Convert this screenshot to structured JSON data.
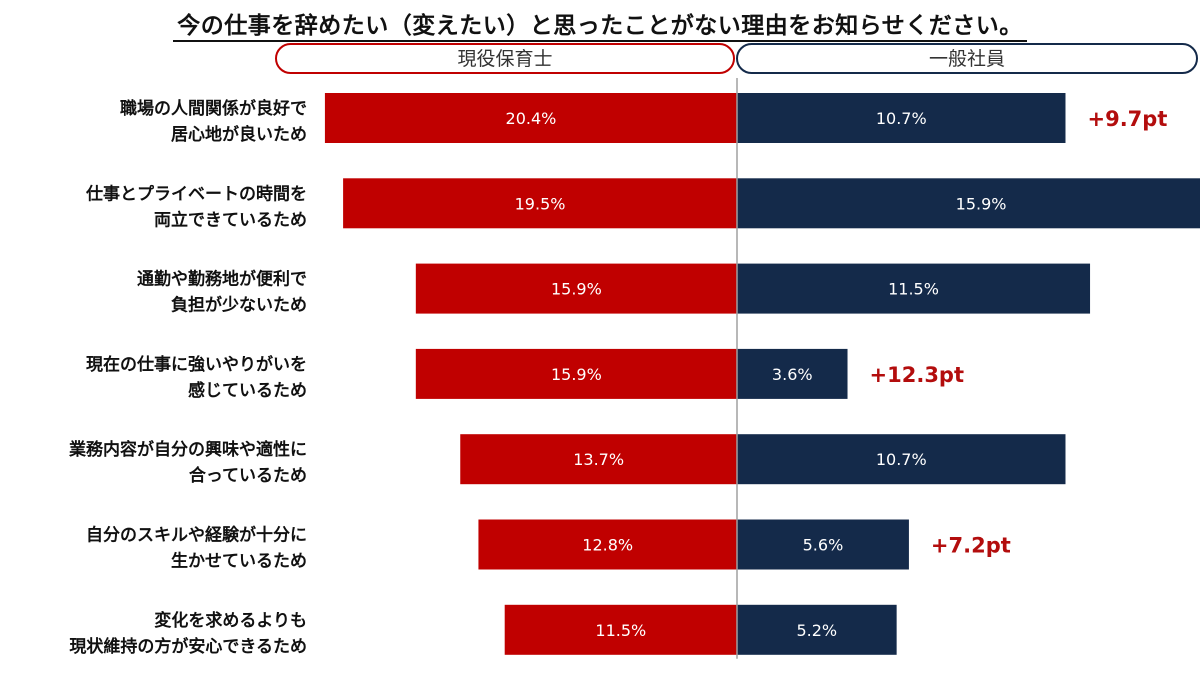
{
  "chart_data": {
    "type": "bar",
    "title": "今の仕事を辞めたい（変えたい）と思ったことがない理由をお知らせください。",
    "categories": [
      [
        "職場の人間関係が良好で",
        "居心地が良いため"
      ],
      [
        "仕事とプライベートの時間を",
        "両立できているため"
      ],
      [
        "通勤や勤務地が便利で",
        "負担が少ないため"
      ],
      [
        "現在の仕事に強いやりがいを",
        "感じているため"
      ],
      [
        "業務内容が自分の興味や適性に",
        "合っているため"
      ],
      [
        "自分のスキルや経験が十分に",
        "生かせているため"
      ],
      [
        "変化を求めるよりも",
        "現状維持の方が安心できるため"
      ]
    ],
    "series": [
      {
        "name": "現役保育士",
        "values": [
          20.4,
          19.5,
          15.9,
          15.9,
          13.7,
          12.8,
          11.5
        ],
        "labels": [
          "20.4%",
          "19.5%",
          "15.9%",
          "15.9%",
          "13.7%",
          "12.8%",
          "11.5%"
        ],
        "color": "#c00000",
        "direction": "left"
      },
      {
        "name": "一般社員",
        "values": [
          10.7,
          15.9,
          11.5,
          3.6,
          10.7,
          5.6,
          5.2
        ],
        "labels": [
          "10.7%",
          "15.9%",
          "11.5%",
          "3.6%",
          "10.7%",
          "5.6%",
          "5.2%"
        ],
        "color": "#142a4a",
        "direction": "right"
      }
    ],
    "differences": [
      {
        "index": 0,
        "label": "+9.7pt"
      },
      {
        "index": 3,
        "label": "+12.3pt"
      },
      {
        "index": 5,
        "label": "+7.2pt"
      }
    ],
    "header_colors": {
      "left": "#c00000",
      "right": "#142a4a"
    },
    "difference_color": "#b30d0d"
  }
}
